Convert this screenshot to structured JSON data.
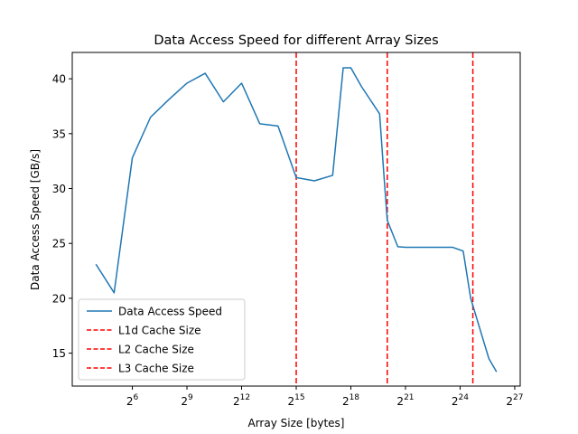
{
  "chart_data": {
    "type": "line",
    "title": "Data Access Speed for different Array Sizes",
    "xlabel": "Array Size [bytes]",
    "ylabel": "Data Access Speed [GB/s]",
    "x_scale": "log2",
    "xlim_log2": [
      2.7,
      27.3
    ],
    "ylim": [
      12,
      42.4
    ],
    "x_ticks": [
      {
        "base": "2",
        "exp": "6",
        "log2": 6
      },
      {
        "base": "2",
        "exp": "9",
        "log2": 9
      },
      {
        "base": "2",
        "exp": "12",
        "log2": 12
      },
      {
        "base": "2",
        "exp": "15",
        "log2": 15
      },
      {
        "base": "2",
        "exp": "18",
        "log2": 18
      },
      {
        "base": "2",
        "exp": "21",
        "log2": 21
      },
      {
        "base": "2",
        "exp": "24",
        "log2": 24
      },
      {
        "base": "2",
        "exp": "27",
        "log2": 27
      }
    ],
    "y_ticks": [
      {
        "label": "15",
        "value": 15
      },
      {
        "label": "20",
        "value": 20
      },
      {
        "label": "25",
        "value": 25
      },
      {
        "label": "30",
        "value": 30
      },
      {
        "label": "35",
        "value": 35
      },
      {
        "label": "40",
        "value": 40
      }
    ],
    "series": [
      {
        "name": "Data Access Speed",
        "color": "#1f77b4",
        "style": "solid",
        "x_log2": [
          4,
          5,
          6,
          7,
          8,
          9,
          10,
          11,
          12,
          13,
          14,
          15,
          16,
          17,
          17.58,
          18,
          18.58,
          19.58,
          19.8,
          20,
          20.58,
          21,
          22,
          23.58,
          24.17,
          24.58,
          25.58,
          26
        ],
        "values": [
          23.1,
          20.5,
          32.8,
          36.5,
          38.1,
          39.6,
          40.5,
          37.9,
          39.6,
          35.9,
          35.7,
          31.0,
          30.7,
          31.2,
          41.0,
          41.0,
          39.3,
          36.8,
          31.6,
          27.1,
          24.7,
          24.65,
          24.65,
          24.65,
          24.3,
          20.0,
          14.5,
          13.3
        ]
      }
    ],
    "vertical_lines": [
      {
        "name": "L1d Cache Size",
        "color": "#d62728",
        "x_log2": 15
      },
      {
        "name": "L2 Cache Size",
        "color": "#d62728",
        "x_log2": 20
      },
      {
        "name": "L3 Cache Size",
        "color": "#d62728",
        "x_log2": 24.7
      }
    ],
    "legend_placement": "lower-left",
    "grid": false
  },
  "colors": {
    "series": "#1f77b4",
    "cache_lines": "#ff0000",
    "axes": "#000000"
  }
}
